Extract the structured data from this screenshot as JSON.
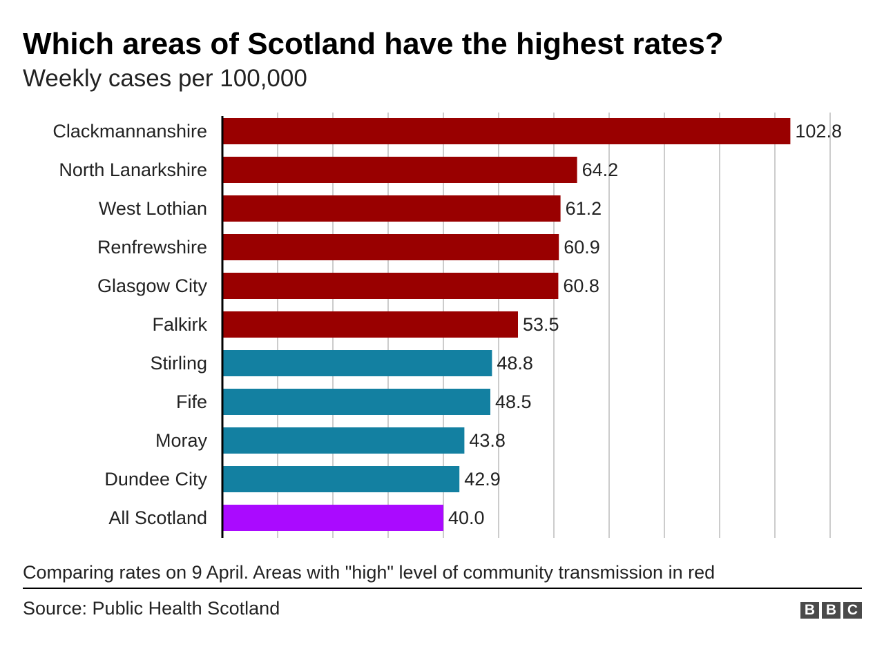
{
  "chart_data": {
    "type": "bar",
    "orientation": "horizontal",
    "title": "Which areas of Scotland have the highest rates?",
    "subtitle": "Weekly cases per 100,000",
    "categories": [
      "Clackmannanshire",
      "North Lanarkshire",
      "West Lothian",
      "Renfrewshire",
      "Glasgow City",
      "Falkirk",
      "Stirling",
      "Fife",
      "Moray",
      "Dundee City",
      "All Scotland"
    ],
    "values": [
      102.8,
      64.2,
      61.2,
      60.9,
      60.8,
      53.5,
      48.8,
      48.5,
      43.8,
      42.9,
      40.0
    ],
    "data_labels": [
      "102.8",
      "64.2",
      "61.2",
      "60.9",
      "60.8",
      "53.5",
      "48.8",
      "48.5",
      "43.8",
      "42.9",
      "40.0"
    ],
    "bar_groups": [
      "high",
      "high",
      "high",
      "high",
      "high",
      "high",
      "other",
      "other",
      "other",
      "other",
      "national"
    ],
    "colors": {
      "high": "#990000",
      "other": "#1380A1",
      "national": "#AA0AFF",
      "grid": "#CCCCCC"
    },
    "xlim": [
      0,
      110
    ],
    "grid_step": 10,
    "grid": true,
    "xlabel": "",
    "ylabel": ""
  },
  "footer": {
    "note": "Comparing rates on 9 April. Areas with \"high\" level of community transmission in red",
    "source": "Source: Public Health Scotland",
    "logo": [
      "B",
      "B",
      "C"
    ]
  }
}
